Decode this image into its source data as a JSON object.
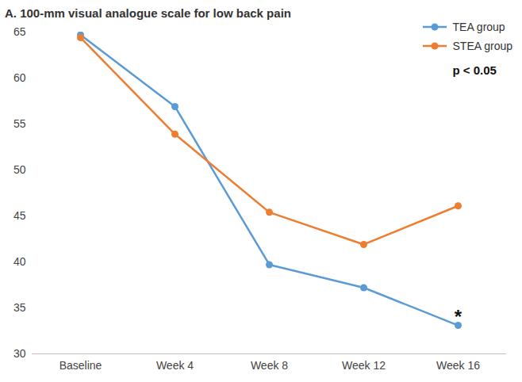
{
  "chart_data": {
    "type": "line",
    "title": "A. 100-mm visual analogue scale for low back pain",
    "categories": [
      "Baseline",
      "Week 4",
      "Week 8",
      "Week 12",
      "Week 16"
    ],
    "series": [
      {
        "name": "TEA group",
        "color": "#5b9bd5",
        "values": [
          64.7,
          56.9,
          39.7,
          37.2,
          33.1
        ]
      },
      {
        "name": "STEA group",
        "color": "#ed7d31",
        "values": [
          64.4,
          53.9,
          45.4,
          41.9,
          46.1
        ]
      }
    ],
    "ylim": [
      30,
      65
    ],
    "yticks": [
      30,
      35,
      40,
      45,
      50,
      55,
      60,
      65
    ],
    "grid": false,
    "legend": "top-right",
    "marker": "circle",
    "annotations": [
      {
        "text": "p < 0.05"
      },
      {
        "text": "*",
        "x": "Week 16",
        "series": "TEA group"
      }
    ]
  }
}
